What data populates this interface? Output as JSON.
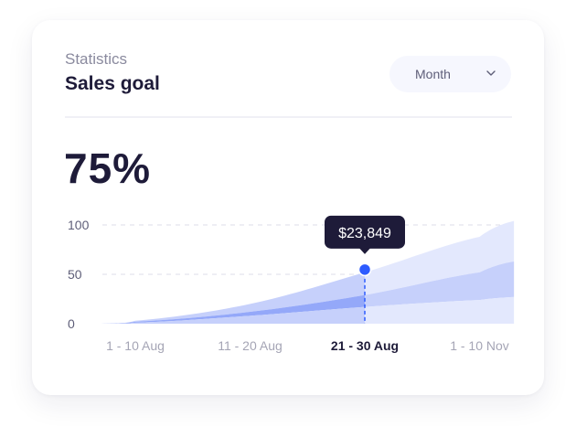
{
  "header": {
    "subtitle": "Statistics",
    "title": "Sales goal"
  },
  "period_select": {
    "value": "Month",
    "icon": "chevron-down-icon"
  },
  "progress": {
    "label": "75%",
    "value": 75
  },
  "tooltip": {
    "text": "$23,849"
  },
  "colors": {
    "accent": "#2d5bff",
    "dark": "#1e1b39",
    "band_dark": "#94a8f9",
    "band_mid": "#c6d0fb",
    "band_light": "#e3e8fd"
  },
  "chart_data": {
    "type": "area",
    "stacked_bands": true,
    "grid": "horizontal dashed",
    "ylim": [
      0,
      100
    ],
    "yticks": [
      "0",
      "50",
      "100"
    ],
    "categories": [
      "1 - 10 Aug",
      "11 - 20 Aug",
      "21 - 30 Aug",
      "1 - 10 Nov"
    ],
    "highlighted_category": "21 - 30 Aug",
    "x": [
      -0.3,
      0,
      1,
      2,
      3,
      3.3
    ],
    "series": [
      {
        "values": [
          0,
          3,
          20,
          52,
          88,
          104
        ]
      },
      {
        "values": [
          0,
          2,
          12,
          29,
          52,
          63
        ]
      },
      {
        "values": [
          0,
          1,
          8,
          17,
          24,
          27
        ]
      }
    ]
  }
}
